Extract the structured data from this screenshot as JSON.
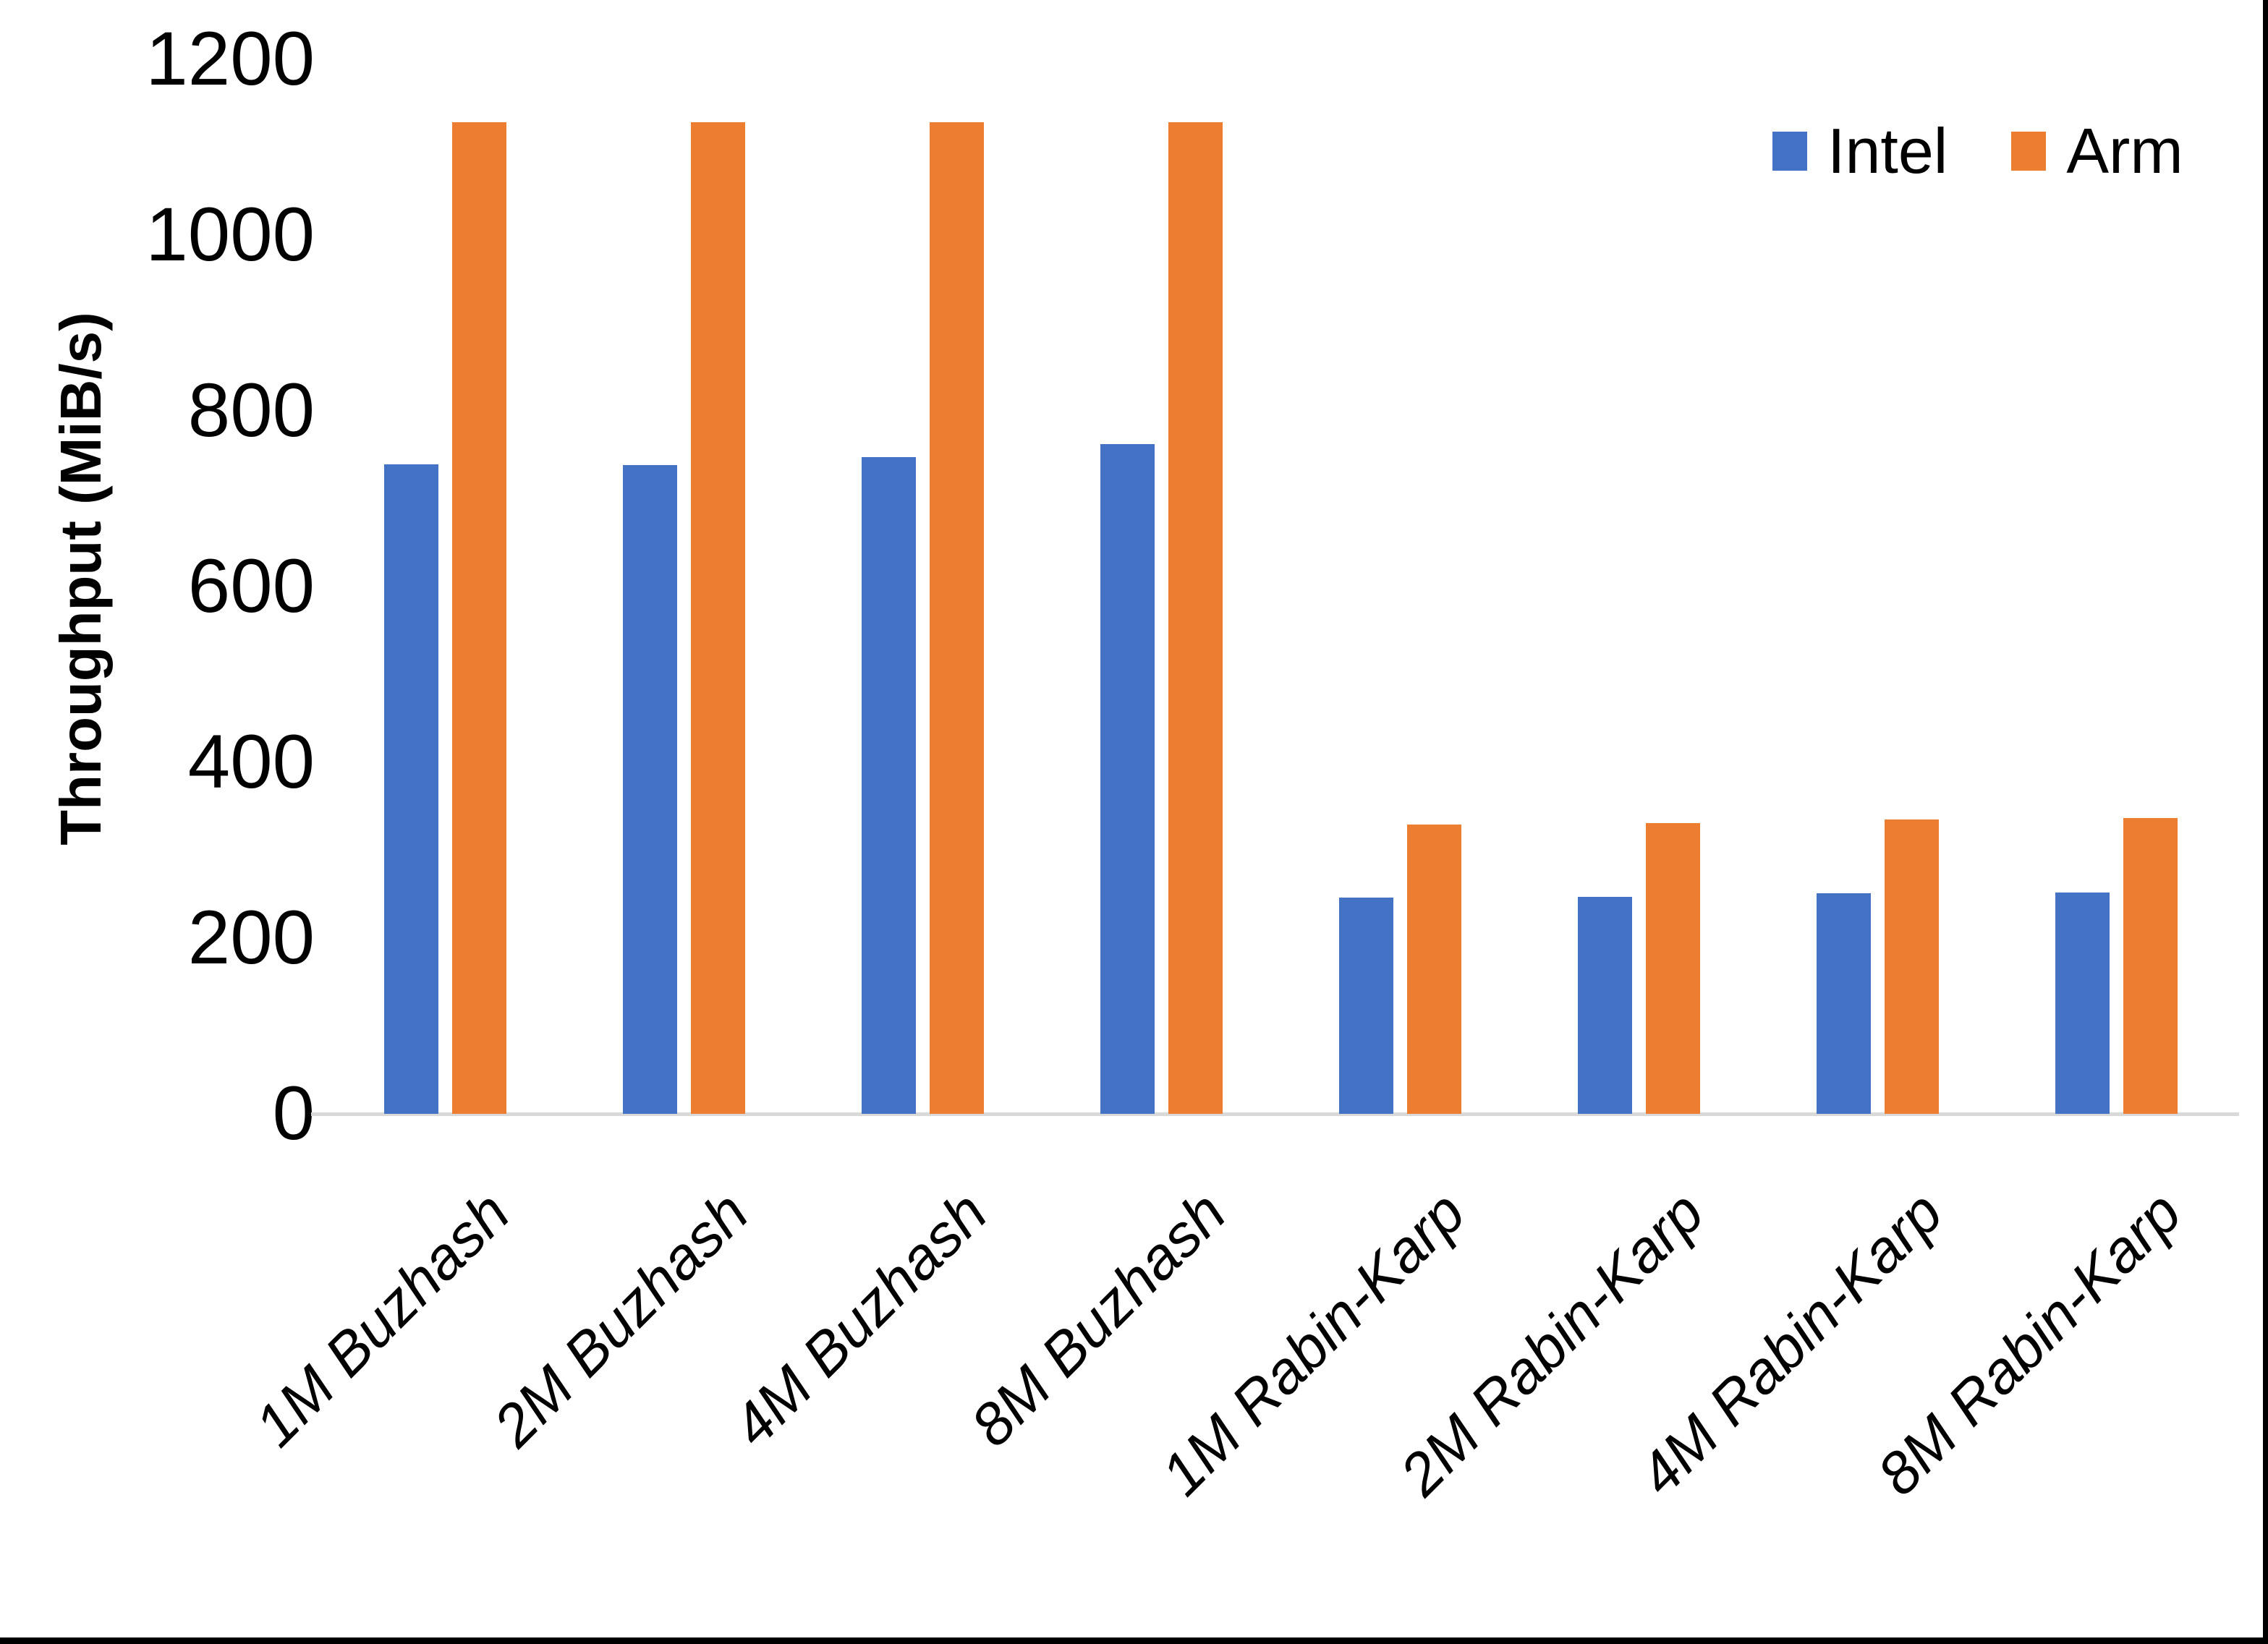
{
  "chart_data": {
    "type": "bar",
    "title": "",
    "xlabel": "",
    "ylabel": "Throughput (MiB/s)",
    "ylim": [
      0,
      1200
    ],
    "yticks": [
      0,
      200,
      400,
      600,
      800,
      1000,
      1200
    ],
    "grid": false,
    "legend_position": "top-right",
    "categories": [
      "1M Buzhash",
      "2M Buzhash",
      "4M Buzhash",
      "8M Buzhash",
      "1M Rabin-Karp",
      "2M Rabin-Karp",
      "4M Rabin-Karp",
      "8M Rabin-Karp"
    ],
    "series": [
      {
        "name": "Intel",
        "color": "#4472C4",
        "values": [
          739,
          738,
          747,
          762,
          246,
          247,
          251,
          252
        ]
      },
      {
        "name": "Arm",
        "color": "#ED7D31",
        "values": [
          1128,
          1128,
          1128,
          1128,
          329,
          331,
          335,
          337
        ]
      }
    ]
  },
  "colors": {
    "background": "#FFFFFF",
    "axis_line": "#D9D9D9",
    "text": "#000000",
    "frame_border": "#000000"
  }
}
